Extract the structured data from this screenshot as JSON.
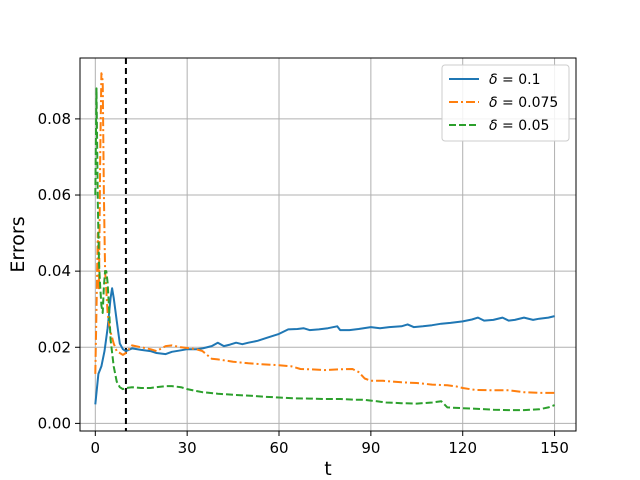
{
  "chart_data": {
    "type": "line",
    "title": "",
    "xlabel": "t",
    "ylabel": "Errors",
    "xlim": [
      -5,
      157
    ],
    "ylim": [
      -0.002,
      0.096
    ],
    "xticks": [
      0,
      30,
      60,
      90,
      120,
      150
    ],
    "yticks": [
      0.0,
      0.02,
      0.04,
      0.06,
      0.08
    ],
    "xtick_labels": [
      "0",
      "30",
      "60",
      "90",
      "120",
      "150"
    ],
    "ytick_labels": [
      "0.00",
      "0.02",
      "0.04",
      "0.06",
      "0.08"
    ],
    "grid": true,
    "legend_position": "top-right",
    "vline": {
      "x": 10,
      "style": "dashed",
      "color": "#000000"
    },
    "series": [
      {
        "name": "δ = 0.1",
        "legend_symbol": "δ",
        "legend_value": "= 0.1",
        "color": "#1f77b4",
        "style": "solid",
        "x": [
          0,
          1,
          2,
          3,
          4,
          5,
          5.5,
          6,
          7,
          8,
          9,
          10,
          12,
          15,
          18,
          20,
          23,
          25,
          28,
          30,
          33,
          35,
          38,
          40,
          42,
          44,
          46,
          48,
          50,
          53,
          56,
          60,
          63,
          66,
          68,
          70,
          73,
          76,
          79,
          80,
          83,
          86,
          90,
          93,
          96,
          100,
          102,
          104,
          107,
          110,
          113,
          116,
          120,
          123,
          125,
          127,
          130,
          133,
          135,
          137,
          140,
          143,
          145,
          148,
          150
        ],
        "y": [
          0.005,
          0.013,
          0.015,
          0.019,
          0.025,
          0.033,
          0.0355,
          0.033,
          0.027,
          0.021,
          0.0195,
          0.019,
          0.0197,
          0.0193,
          0.019,
          0.0185,
          0.0182,
          0.0188,
          0.0192,
          0.0195,
          0.0195,
          0.0197,
          0.0203,
          0.0212,
          0.0203,
          0.0207,
          0.0212,
          0.0208,
          0.0212,
          0.0217,
          0.0225,
          0.0235,
          0.0247,
          0.0248,
          0.025,
          0.0245,
          0.0247,
          0.025,
          0.0255,
          0.0245,
          0.0245,
          0.0248,
          0.0253,
          0.025,
          0.0253,
          0.0255,
          0.026,
          0.0253,
          0.0255,
          0.0258,
          0.0262,
          0.0264,
          0.0268,
          0.0273,
          0.0278,
          0.027,
          0.0272,
          0.0278,
          0.027,
          0.0272,
          0.0278,
          0.0272,
          0.0275,
          0.0278,
          0.0282
        ]
      },
      {
        "name": "δ = 0.075",
        "legend_symbol": "δ",
        "legend_value": "= 0.075",
        "color": "#ff7f0e",
        "style": "dashdot",
        "x": [
          0,
          0.4,
          0.8,
          1.2,
          1.6,
          2.0,
          2.4,
          2.8,
          3.2,
          3.6,
          4.0,
          4.5,
          5.0,
          6.0,
          7.0,
          8.0,
          9.0,
          10,
          12,
          15,
          18,
          20,
          23,
          25,
          28,
          30,
          33,
          35,
          38,
          40,
          45,
          50,
          55,
          60,
          64,
          67,
          70,
          75,
          80,
          84,
          86,
          88,
          90,
          94,
          100,
          105,
          110,
          115,
          118,
          120,
          124,
          130,
          135,
          140,
          145,
          150
        ],
        "y": [
          0.013,
          0.03,
          0.05,
          0.035,
          0.07,
          0.092,
          0.09,
          0.06,
          0.04,
          0.035,
          0.029,
          0.026,
          0.024,
          0.021,
          0.019,
          0.0185,
          0.018,
          0.0185,
          0.0205,
          0.02,
          0.0195,
          0.019,
          0.0203,
          0.0205,
          0.02,
          0.0198,
          0.0195,
          0.019,
          0.017,
          0.0168,
          0.0162,
          0.0158,
          0.0155,
          0.0153,
          0.015,
          0.0143,
          0.0142,
          0.014,
          0.0142,
          0.0143,
          0.0135,
          0.0118,
          0.0112,
          0.0112,
          0.0108,
          0.0106,
          0.0102,
          0.01,
          0.0097,
          0.0093,
          0.0088,
          0.0087,
          0.0087,
          0.0082,
          0.008,
          0.008
        ]
      },
      {
        "name": "δ = 0.05",
        "legend_symbol": "δ",
        "legend_value": "= 0.05",
        "color": "#2ca02c",
        "style": "dashed",
        "x": [
          0,
          0.4,
          0.8,
          1.2,
          1.6,
          2.0,
          2.4,
          2.8,
          3.2,
          3.6,
          4.0,
          4.5,
          5.0,
          6.0,
          7.0,
          8.0,
          9.0,
          10,
          12,
          15,
          18,
          20,
          23,
          25,
          28,
          30,
          33,
          35,
          40,
          45,
          50,
          55,
          60,
          65,
          70,
          75,
          80,
          85,
          88,
          90,
          92,
          95,
          100,
          105,
          110,
          113,
          115,
          120,
          125,
          130,
          135,
          140,
          145,
          148,
          150
        ],
        "y": [
          0.06,
          0.088,
          0.058,
          0.042,
          0.036,
          0.031,
          0.029,
          0.036,
          0.04,
          0.04,
          0.037,
          0.03,
          0.022,
          0.015,
          0.011,
          0.0095,
          0.009,
          0.0093,
          0.0095,
          0.0093,
          0.0093,
          0.0095,
          0.0098,
          0.0098,
          0.0095,
          0.009,
          0.0085,
          0.0082,
          0.0078,
          0.0075,
          0.0073,
          0.007,
          0.0068,
          0.0066,
          0.0065,
          0.0064,
          0.0064,
          0.0062,
          0.0062,
          0.006,
          0.0058,
          0.0055,
          0.0053,
          0.0052,
          0.0055,
          0.0058,
          0.0042,
          0.004,
          0.0038,
          0.0036,
          0.0035,
          0.0035,
          0.0037,
          0.0042,
          0.0048
        ]
      }
    ]
  }
}
